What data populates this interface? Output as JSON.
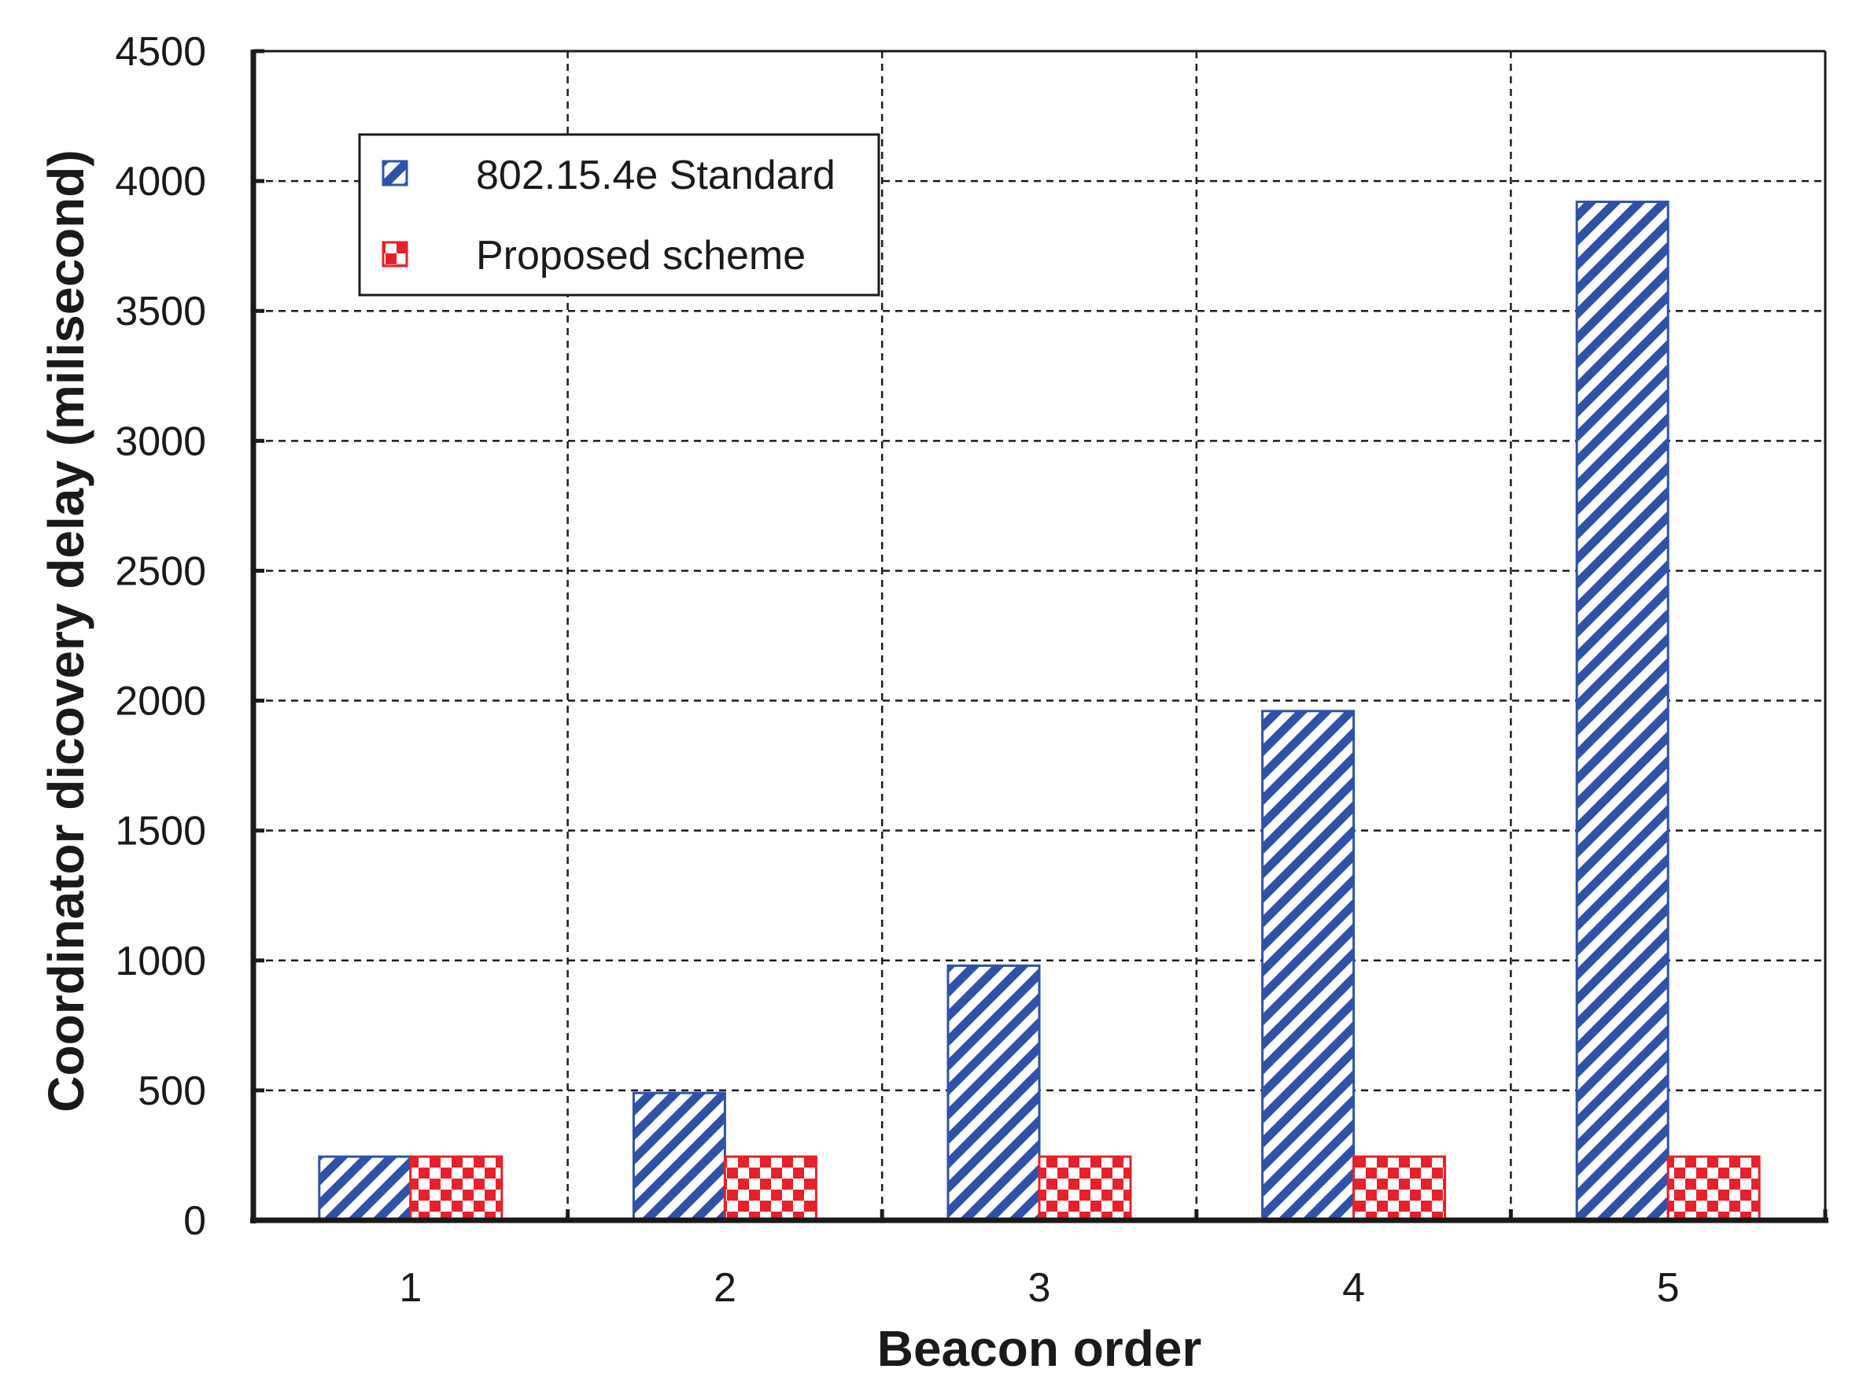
{
  "chart_data": {
    "type": "bar",
    "xlabel": "Beacon order",
    "ylabel": "Coordinator dicovery delay (milisecond)",
    "categories": [
      "1",
      "2",
      "3",
      "4",
      "5"
    ],
    "ylim": [
      0,
      4500
    ],
    "yticks": [
      "0",
      "500",
      "1000",
      "1500",
      "2000",
      "2500",
      "3000",
      "3500",
      "4000",
      "4500"
    ],
    "grid": true,
    "legend_position": "top-left",
    "series": [
      {
        "name": "802.15.4e Standard",
        "values": [
          245,
          490,
          980,
          1960,
          3920
        ],
        "color": "#2f52a8",
        "pattern": "diagonal-stripes"
      },
      {
        "name": "Proposed scheme",
        "values": [
          245,
          245,
          245,
          245,
          245
        ],
        "color": "#e8202a",
        "pattern": "checkerboard"
      }
    ]
  }
}
